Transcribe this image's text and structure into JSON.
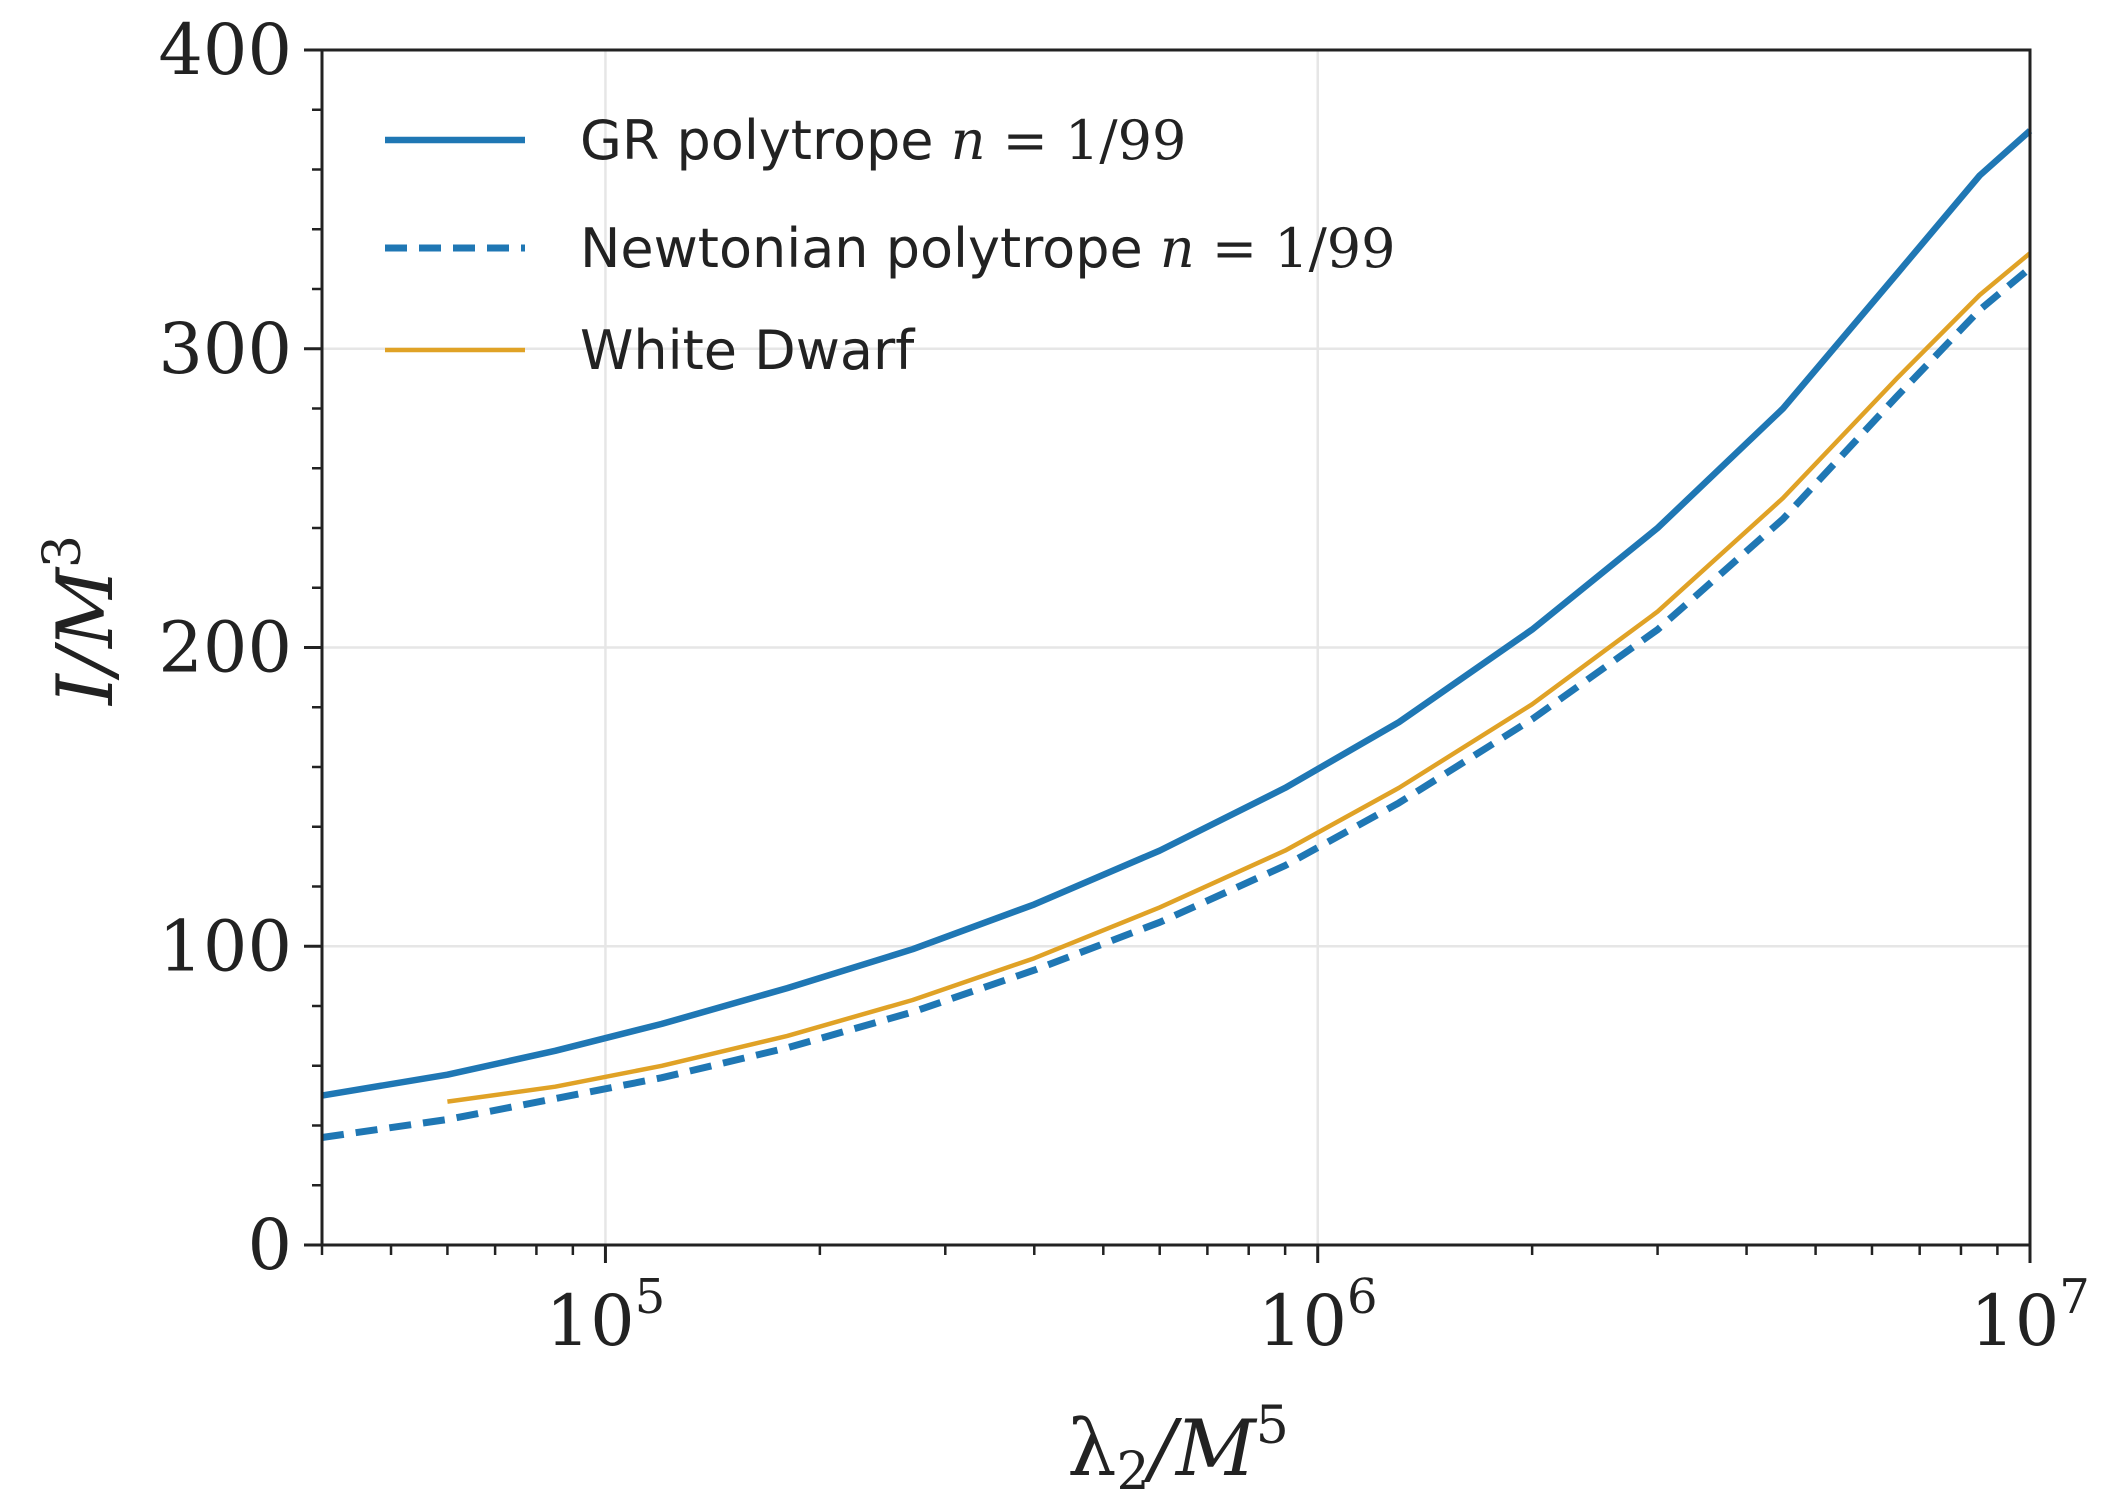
{
  "chart_data": {
    "type": "line",
    "title": "",
    "xlabel": {
      "main": "λ",
      "sub": "2",
      "mid": "/M",
      "sup": "5"
    },
    "ylabel": {
      "main": "I",
      "mid": "/M",
      "sup": "3"
    },
    "xscale": "log",
    "xlim": [
      40000,
      10000000
    ],
    "ylim": [
      0,
      400
    ],
    "grid": true,
    "x_ticks": [
      {
        "value": 100000,
        "base": "10",
        "exp": "5"
      },
      {
        "value": 1000000,
        "base": "10",
        "exp": "6"
      },
      {
        "value": 10000000,
        "base": "10",
        "exp": "7"
      }
    ],
    "y_ticks": [
      {
        "value": 0,
        "label": "0"
      },
      {
        "value": 100,
        "label": "100"
      },
      {
        "value": 200,
        "label": "200"
      },
      {
        "value": 300,
        "label": "300"
      },
      {
        "value": 400,
        "label": "400"
      }
    ],
    "legend_position": "top-left",
    "series": [
      {
        "name": "GR polytrope n = 1/99",
        "label_text": "GR polytrope ",
        "label_math": {
          "var": "n",
          "rest": " = 1/99"
        },
        "style": "solid",
        "color": "#1f77b4",
        "x": [
          40000,
          60000,
          85000,
          120000,
          180000,
          270000,
          400000,
          600000,
          900000,
          1300000,
          2000000,
          3000000,
          4500000,
          6500000,
          8500000,
          10000000
        ],
        "y": [
          50,
          57,
          65,
          74,
          86,
          99,
          114,
          132,
          153,
          175,
          206,
          240,
          280,
          325,
          358,
          373
        ]
      },
      {
        "name": "Newtonian polytrope n = 1/99",
        "label_text": "Newtonian polytrope ",
        "label_math": {
          "var": "n",
          "rest": " = 1/99"
        },
        "style": "dashed",
        "color": "#1f77b4",
        "x": [
          40000,
          60000,
          85000,
          120000,
          180000,
          270000,
          400000,
          600000,
          900000,
          1300000,
          2000000,
          3000000,
          4500000,
          6500000,
          8500000,
          10000000
        ],
        "y": [
          36,
          42,
          49,
          56,
          66,
          78,
          92,
          108,
          127,
          148,
          176,
          206,
          243,
          284,
          313,
          327
        ]
      },
      {
        "name": "White Dwarf",
        "label_text": "White Dwarf",
        "label_math": null,
        "style": "solid-thin",
        "color": "#e0a226",
        "x": [
          60000,
          85000,
          120000,
          180000,
          270000,
          400000,
          600000,
          900000,
          1300000,
          2000000,
          3000000,
          4500000,
          6500000,
          8500000,
          10000000
        ],
        "y": [
          48,
          53,
          60,
          70,
          82,
          96,
          113,
          132,
          153,
          181,
          212,
          250,
          290,
          318,
          332
        ]
      }
    ]
  }
}
